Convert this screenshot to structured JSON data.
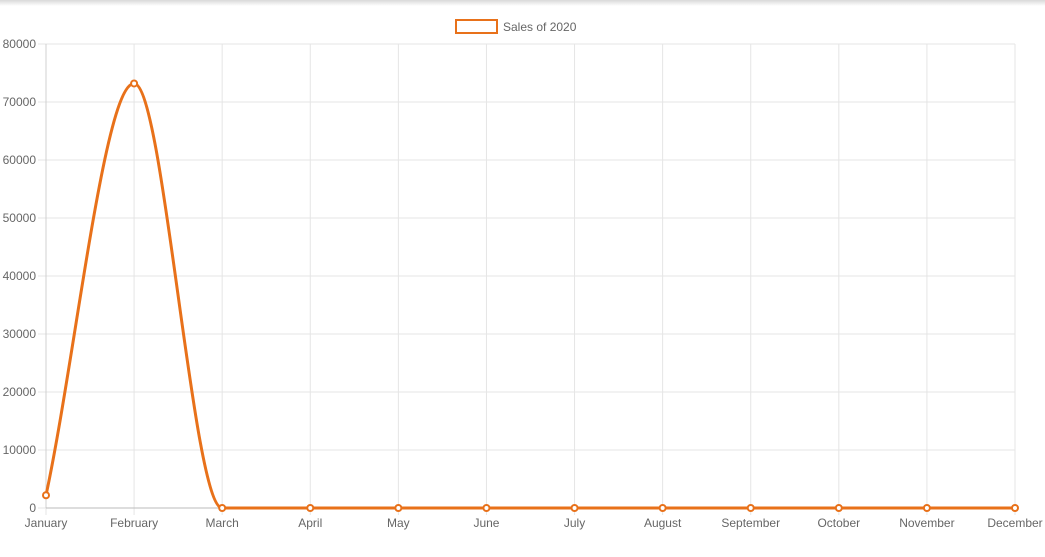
{
  "chart_data": {
    "type": "line",
    "categories": [
      "January",
      "February",
      "March",
      "April",
      "May",
      "June",
      "July",
      "August",
      "September",
      "October",
      "November",
      "December"
    ],
    "series": [
      {
        "name": "Sales of 2020",
        "values": [
          2200,
          73200,
          0,
          0,
          0,
          0,
          0,
          0,
          0,
          0,
          0,
          0
        ],
        "color": "#e8711a"
      }
    ],
    "ylim": [
      0,
      80000
    ],
    "yticks": [
      "0",
      "10000",
      "20000",
      "30000",
      "40000",
      "50000",
      "60000",
      "70000",
      "80000"
    ],
    "grid": true,
    "legend_position": "top-center",
    "title": "",
    "xlabel": "",
    "ylabel": ""
  }
}
